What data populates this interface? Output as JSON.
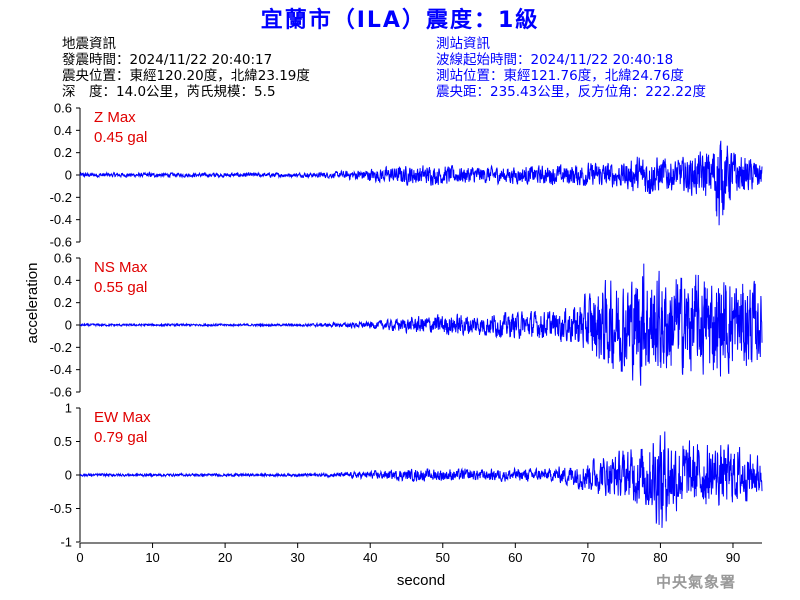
{
  "title": "宜蘭市（ILA）震度：1級",
  "quake_info": {
    "heading": "地震資訊",
    "time": "發震時間：2024/11/22 20:40:17",
    "epicenter": "震央位置：東經120.20度，北緯23.19度",
    "depth_mag": "深　度：14.0公里，芮氏規模：5.5"
  },
  "station_info": {
    "heading": "測站資訊",
    "wave_start": "波線起始時間：2024/11/22 20:40:18",
    "location": "測站位置：東經121.76度，北緯24.76度",
    "distance": "震央距：235.43公里，反方位角：222.22度"
  },
  "agency": "中央氣象署",
  "colors": {
    "title": "#0000ff",
    "trace": "#0000ff",
    "label": "#e00000"
  },
  "chart_data": [
    {
      "type": "line",
      "component": "Z",
      "label_name": "Z Max",
      "label_value": "0.45 gal",
      "ylim": [
        -0.6,
        0.6
      ],
      "yticks": [
        -0.6,
        -0.4,
        -0.2,
        0,
        0.2,
        0.4,
        0.6
      ],
      "ytick_labels": [
        "-0.6",
        "-0.4",
        "-0.2",
        "0",
        "0.2",
        "0.4",
        "0.6"
      ],
      "x": [
        0,
        10,
        20,
        30,
        35,
        40,
        45,
        50,
        55,
        60,
        65,
        70,
        75,
        78,
        82,
        85,
        87,
        88,
        89,
        91,
        93,
        94
      ],
      "amplitude": [
        0.02,
        0.02,
        0.02,
        0.02,
        0.03,
        0.06,
        0.09,
        0.09,
        0.08,
        0.08,
        0.09,
        0.11,
        0.12,
        0.2,
        0.14,
        0.2,
        0.24,
        0.45,
        0.3,
        0.18,
        0.15,
        0.12
      ],
      "peak": {
        "x": 88.1,
        "y": -0.45
      }
    },
    {
      "type": "line",
      "component": "NS",
      "label_name": "NS Max",
      "label_value": "0.55 gal",
      "ylim": [
        -0.6,
        0.6
      ],
      "yticks": [
        -0.6,
        -0.4,
        -0.2,
        0,
        0.2,
        0.4,
        0.6
      ],
      "ytick_labels": [
        "-0.6",
        "-0.4",
        "-0.2",
        "0",
        "0.2",
        "0.4",
        "0.6"
      ],
      "x": [
        0,
        10,
        20,
        30,
        35,
        40,
        45,
        50,
        55,
        60,
        65,
        68,
        70,
        72,
        75,
        77,
        80,
        85,
        87,
        90,
        93,
        94
      ],
      "amplitude": [
        0.01,
        0.01,
        0.01,
        0.01,
        0.02,
        0.03,
        0.07,
        0.1,
        0.1,
        0.12,
        0.13,
        0.18,
        0.3,
        0.4,
        0.42,
        0.55,
        0.48,
        0.45,
        0.47,
        0.45,
        0.4,
        0.3
      ],
      "peak": {
        "x": 77.7,
        "y": 0.55
      }
    },
    {
      "type": "line",
      "component": "EW",
      "label_name": "EW Max",
      "label_value": "0.79 gal",
      "ylim": [
        -1,
        1
      ],
      "yticks": [
        -1,
        -0.5,
        0,
        0.5,
        1
      ],
      "ytick_labels": [
        "-1",
        "-0.5",
        "0",
        "0.5",
        "1"
      ],
      "x": [
        0,
        10,
        20,
        30,
        35,
        40,
        45,
        50,
        55,
        60,
        65,
        68,
        70,
        72,
        75,
        77,
        80,
        82,
        85,
        90,
        93,
        94
      ],
      "amplitude": [
        0.02,
        0.02,
        0.02,
        0.02,
        0.03,
        0.06,
        0.09,
        0.1,
        0.09,
        0.1,
        0.1,
        0.18,
        0.25,
        0.3,
        0.38,
        0.45,
        0.79,
        0.55,
        0.5,
        0.45,
        0.35,
        0.3
      ],
      "peak": {
        "x": 80.2,
        "y": -0.79
      }
    }
  ],
  "xaxis": {
    "label": "second",
    "ylabel": "acceleration",
    "xlim": [
      0,
      94
    ],
    "ticks": [
      0,
      10,
      20,
      30,
      40,
      50,
      60,
      70,
      80,
      90
    ],
    "tick_labels": [
      "0",
      "10",
      "20",
      "30",
      "40",
      "50",
      "60",
      "70",
      "80",
      "90"
    ]
  }
}
